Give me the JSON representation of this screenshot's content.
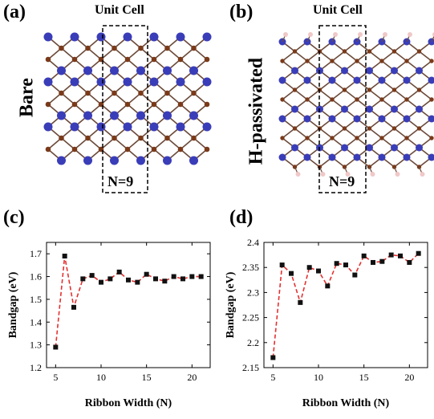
{
  "figure": {
    "panel_a": {
      "label": "(a)",
      "title": "Unit Cell",
      "side_label": "Bare",
      "cell_label": "N=9"
    },
    "panel_b": {
      "label": "(b)",
      "title": "Unit Cell",
      "side_label": "H-passivated",
      "cell_label": "N=9"
    },
    "panel_c": {
      "label": "(c)"
    },
    "panel_d": {
      "label": "(d)"
    },
    "colors": {
      "atom_a": "#3a3db8",
      "atom_b": "#7a3a1a",
      "hydrogen": "#f0c8c8",
      "bond": "#6b4a3a",
      "line": "#e53030",
      "marker": "#111111"
    }
  },
  "chart_data": [
    {
      "type": "line",
      "panel": "(c)",
      "xlabel": "Ribbon Width (N)",
      "ylabel": "Bandgap (eV)",
      "xlim": [
        4,
        22
      ],
      "ylim": [
        1.2,
        1.75
      ],
      "xticks": [
        5,
        10,
        15,
        20
      ],
      "yticks": [
        1.2,
        1.3,
        1.4,
        1.5,
        1.6,
        1.7
      ],
      "ytick_labels": [
        "1.2",
        "1.3",
        "1.4",
        "1.5",
        "1.6",
        "1.7"
      ],
      "x": [
        5,
        6,
        7,
        8,
        9,
        10,
        11,
        12,
        13,
        14,
        15,
        16,
        17,
        18,
        19,
        20,
        21
      ],
      "y": [
        1.29,
        1.69,
        1.465,
        1.59,
        1.605,
        1.575,
        1.59,
        1.62,
        1.585,
        1.575,
        1.61,
        1.59,
        1.58,
        1.6,
        1.59,
        1.6,
        1.6
      ],
      "grid": false
    },
    {
      "type": "line",
      "panel": "(d)",
      "xlabel": "Ribbon Width (N)",
      "ylabel": "Bandgap (eV)",
      "xlim": [
        4,
        22
      ],
      "ylim": [
        2.15,
        2.4
      ],
      "xticks": [
        5,
        10,
        15,
        20
      ],
      "yticks": [
        2.15,
        2.2,
        2.25,
        2.3,
        2.35,
        2.4
      ],
      "ytick_labels": [
        "2.15",
        "2.2",
        "2.25",
        "2.3",
        "2.35",
        "2.4"
      ],
      "x": [
        5,
        6,
        7,
        8,
        9,
        10,
        11,
        12,
        13,
        14,
        15,
        16,
        17,
        18,
        19,
        20,
        21
      ],
      "y": [
        2.17,
        2.355,
        2.338,
        2.28,
        2.35,
        2.343,
        2.313,
        2.358,
        2.355,
        2.335,
        2.373,
        2.36,
        2.362,
        2.375,
        2.373,
        2.36,
        2.378
      ],
      "grid": false
    }
  ]
}
